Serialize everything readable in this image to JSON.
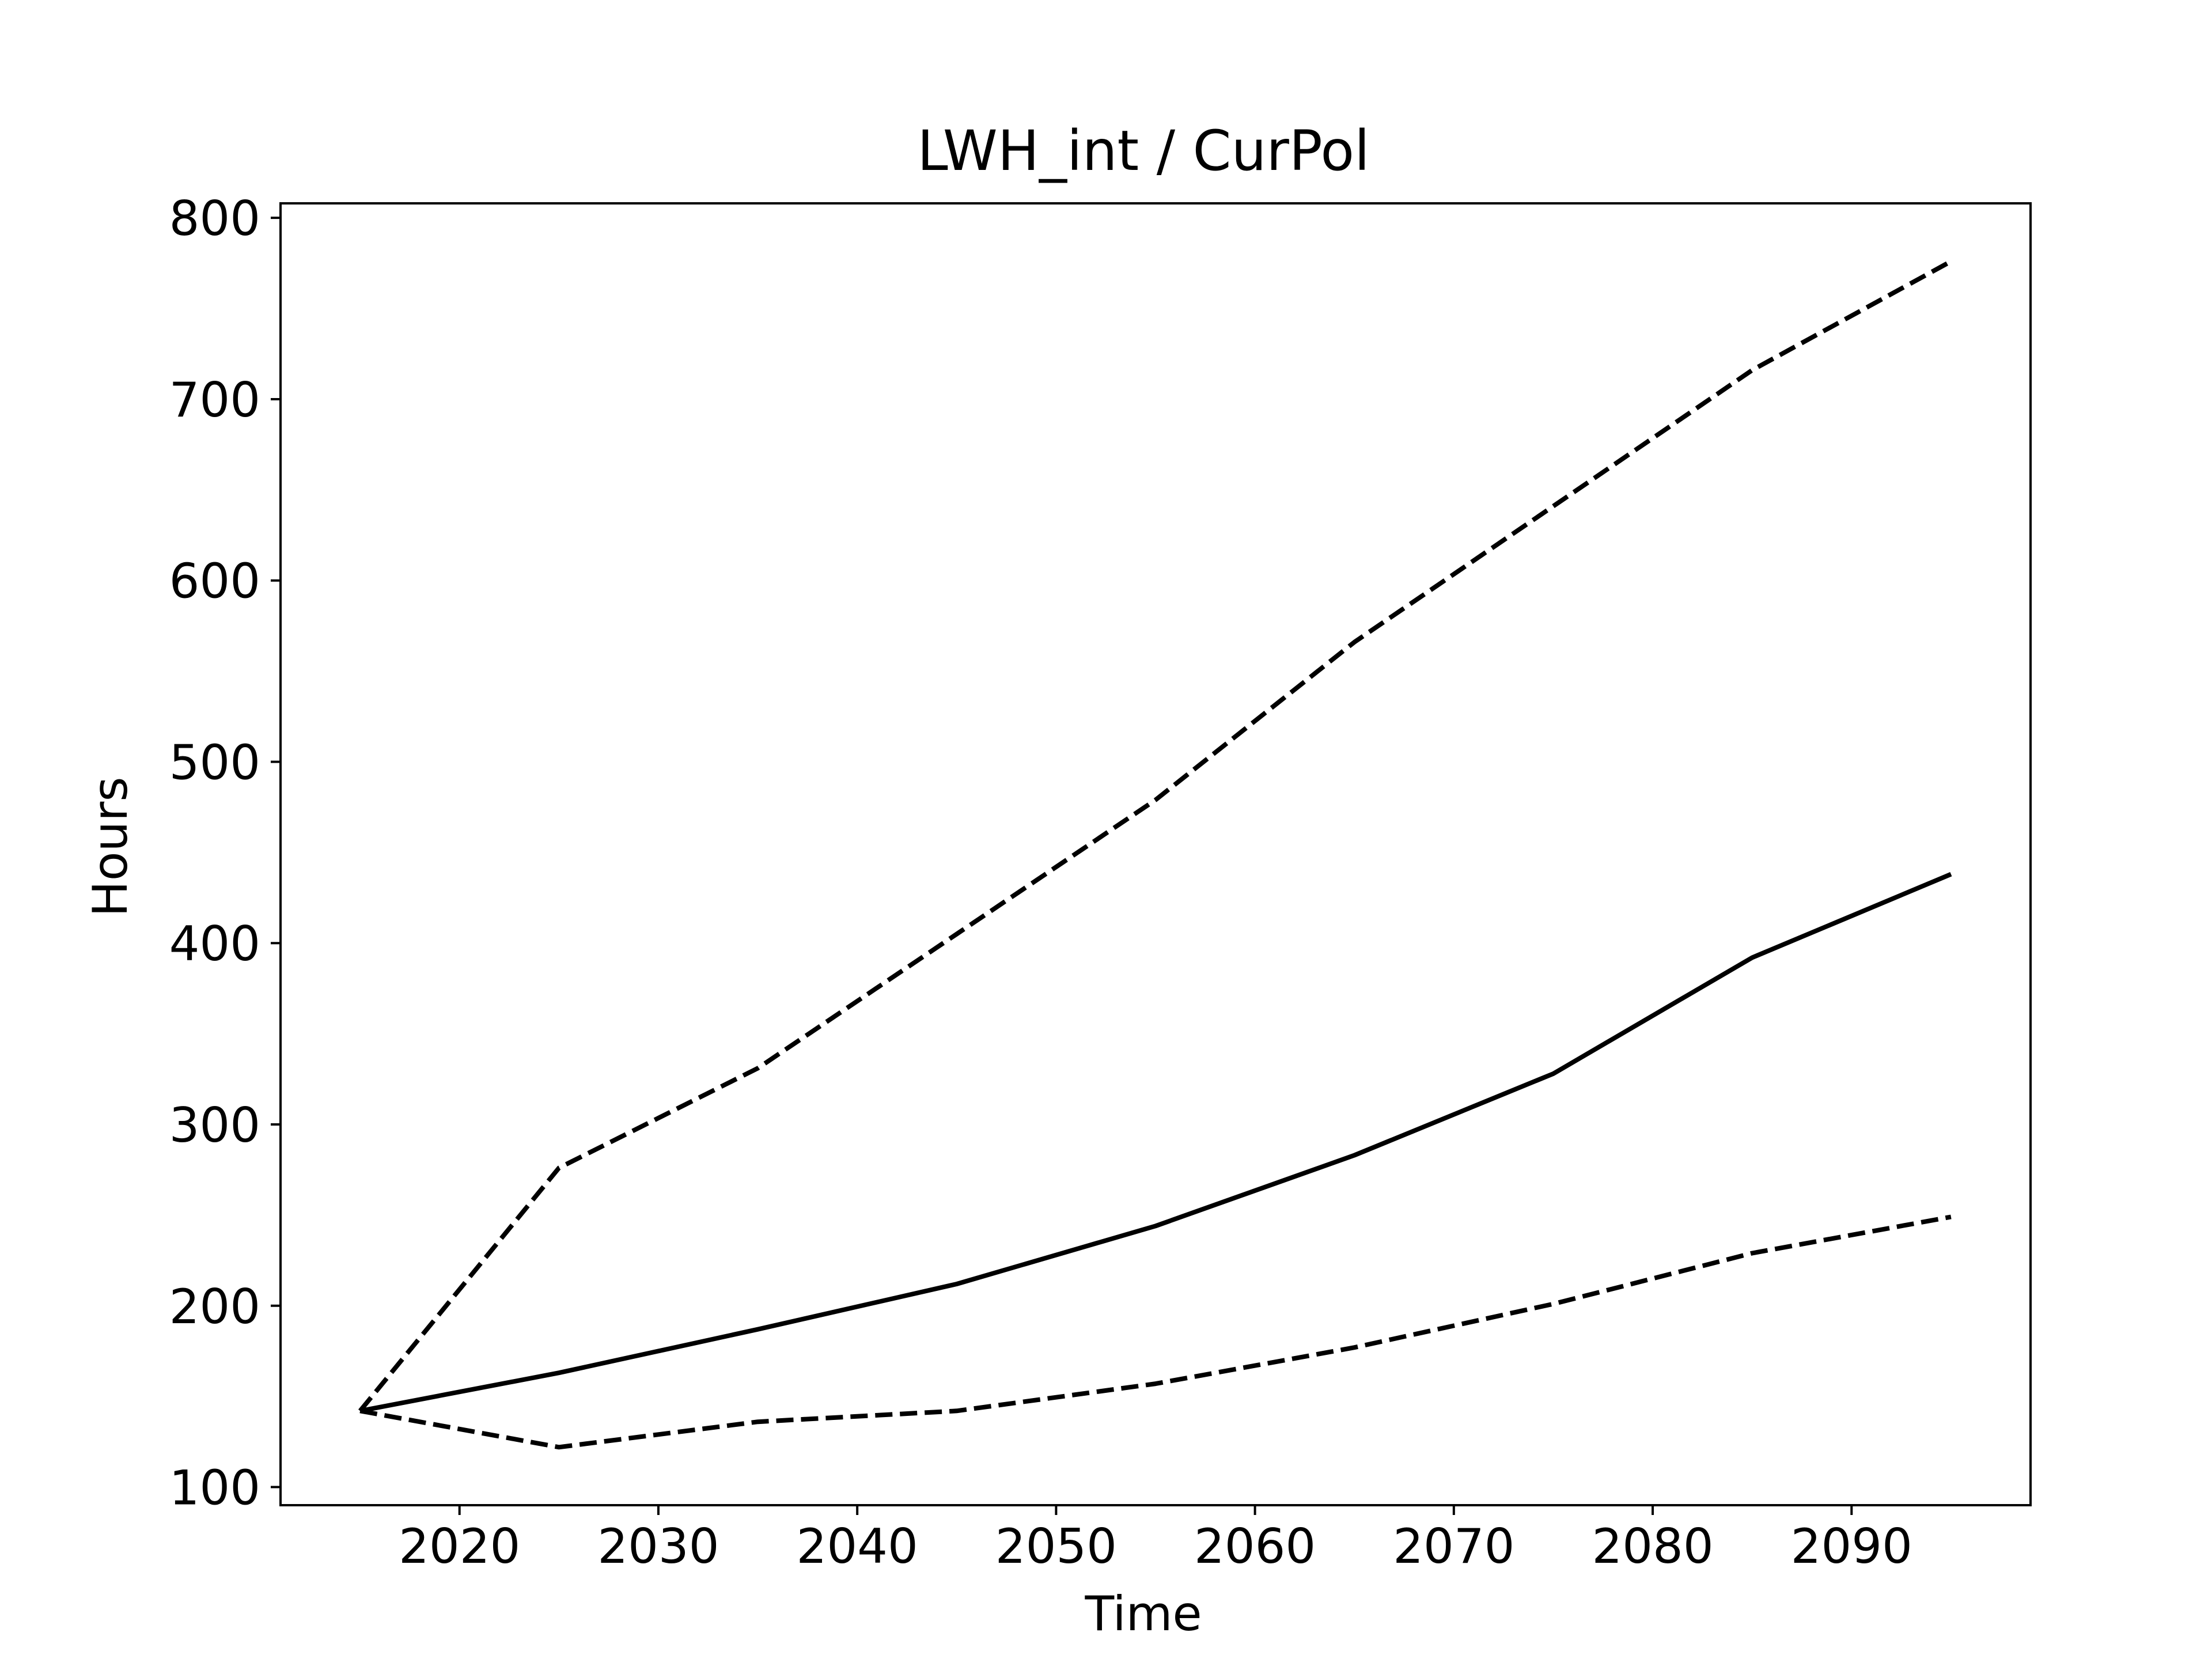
{
  "chart_data": {
    "type": "line",
    "title": "LWH_int / CurPol",
    "xlabel": "Time",
    "ylabel": "Hours",
    "xlim": [
      2011,
      2099
    ],
    "ylim": [
      90,
      808
    ],
    "xticks": [
      2020,
      2030,
      2040,
      2050,
      2060,
      2070,
      2080,
      2090
    ],
    "yticks": [
      100,
      200,
      300,
      400,
      500,
      600,
      700,
      800
    ],
    "grid": false,
    "legend": "none",
    "x": [
      2015,
      2025,
      2035,
      2045,
      2055,
      2065,
      2075,
      2085,
      2095
    ],
    "series": [
      {
        "values": [
          142,
          276,
          331,
          405,
          479,
          566,
          641,
          716,
          776
        ],
        "style": "dashed",
        "color": "#000000"
      },
      {
        "values": [
          142,
          163,
          187,
          212,
          244,
          283,
          328,
          392,
          438
        ],
        "style": "solid",
        "color": "#000000"
      },
      {
        "values": [
          142,
          122,
          136,
          142,
          157,
          177,
          201,
          229,
          249
        ],
        "style": "dashed",
        "color": "#000000"
      }
    ]
  }
}
